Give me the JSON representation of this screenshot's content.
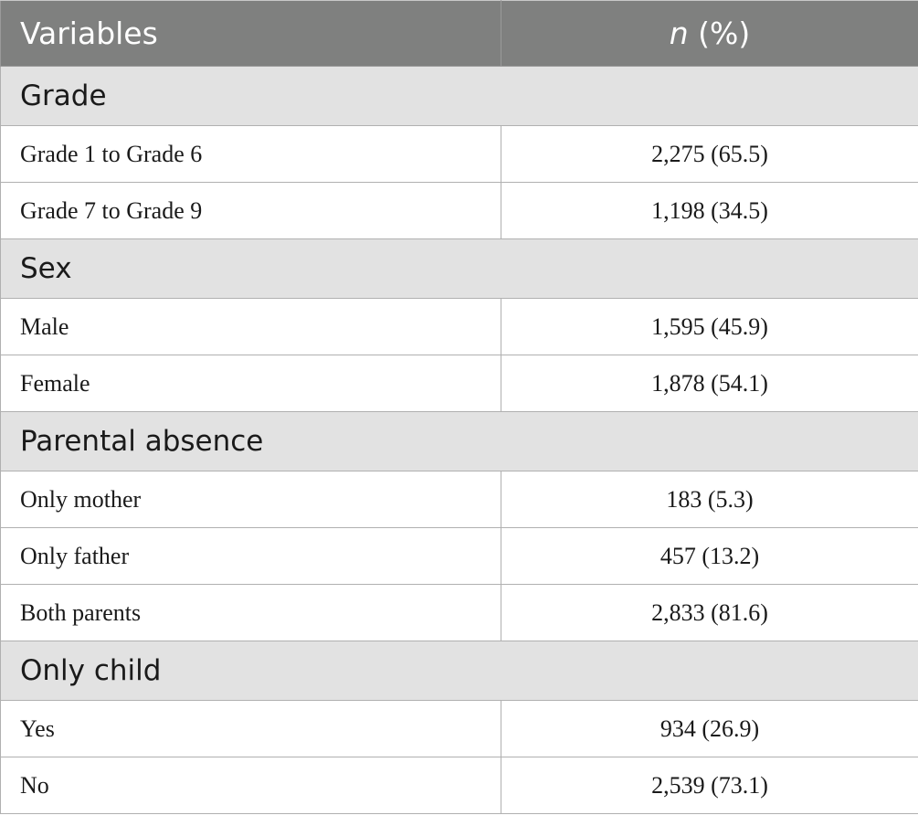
{
  "header": {
    "variables_label": "Variables",
    "n_label": "n",
    "percent_label": "(%)"
  },
  "sections": [
    {
      "title": "Grade",
      "rows": [
        {
          "label": "Grade 1 to Grade 6",
          "value": "2,275 (65.5)"
        },
        {
          "label": "Grade 7 to Grade 9",
          "value": "1,198 (34.5)"
        }
      ]
    },
    {
      "title": "Sex",
      "rows": [
        {
          "label": "Male",
          "value": "1,595 (45.9)"
        },
        {
          "label": "Female",
          "value": "1,878 (54.1)"
        }
      ]
    },
    {
      "title": "Parental absence",
      "rows": [
        {
          "label": "Only mother",
          "value": "183 (5.3)"
        },
        {
          "label": "Only father",
          "value": "457 (13.2)"
        },
        {
          "label": "Both parents",
          "value": "2,833 (81.6)"
        }
      ]
    },
    {
      "title": "Only child",
      "rows": [
        {
          "label": "Yes",
          "value": "934 (26.9)"
        },
        {
          "label": "No",
          "value": "2,539 (73.1)"
        }
      ]
    }
  ],
  "colors": {
    "header_bg": "#7f807f",
    "section_bg": "#e2e2e2",
    "border": "#b0b0b0"
  }
}
